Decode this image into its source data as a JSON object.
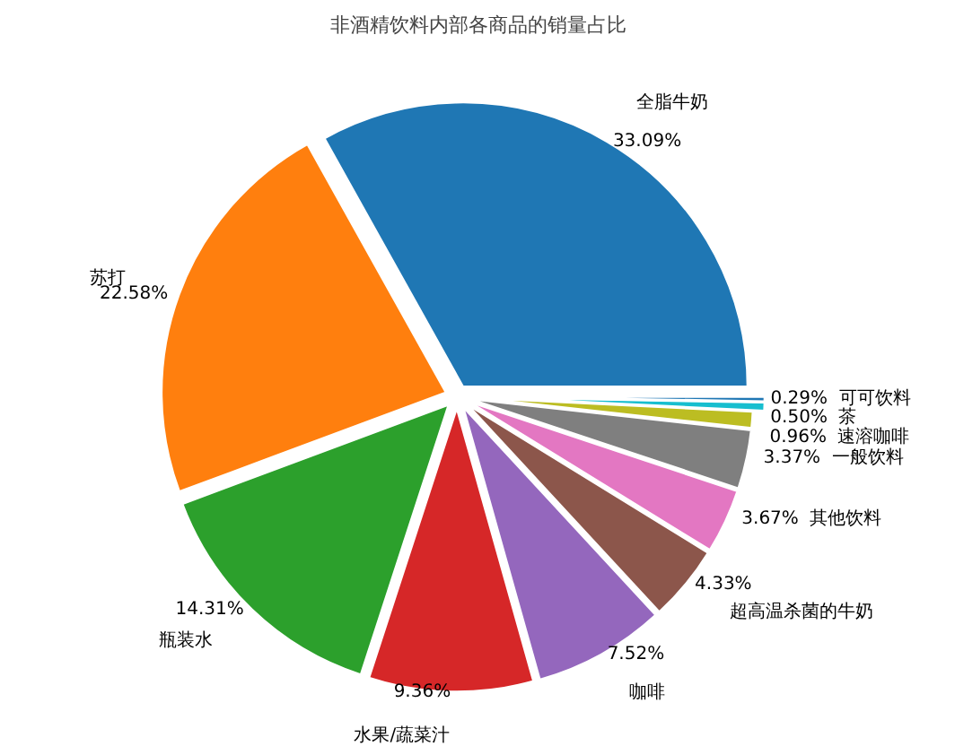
{
  "chart_data": {
    "type": "pie",
    "title": "非酒精饮料内部各商品的销量占比",
    "categories": [
      "全脂牛奶",
      "苏打",
      "瓶装水",
      "水果/蔬菜汁",
      "咖啡",
      "超高温杀菌的牛奶",
      "其他饮料",
      "一般饮料",
      "速溶咖啡",
      "茶",
      "可可饮料"
    ],
    "values": [
      33.09,
      22.58,
      14.31,
      9.36,
      7.52,
      4.33,
      3.67,
      3.37,
      0.96,
      0.5,
      0.29
    ],
    "value_labels": [
      "33.09%",
      "22.58%",
      "14.31%",
      "9.36%",
      "7.52%",
      "4.33%",
      "3.67%",
      "3.37%",
      "0.96%",
      "0.50%",
      "0.29%"
    ],
    "colors": [
      "#1f77b4",
      "#ff7f0e",
      "#2ca02c",
      "#d62728",
      "#9467bd",
      "#8c564b",
      "#e377c2",
      "#7f7f7f",
      "#bcbd22",
      "#17becf",
      "#1f77b4"
    ]
  }
}
